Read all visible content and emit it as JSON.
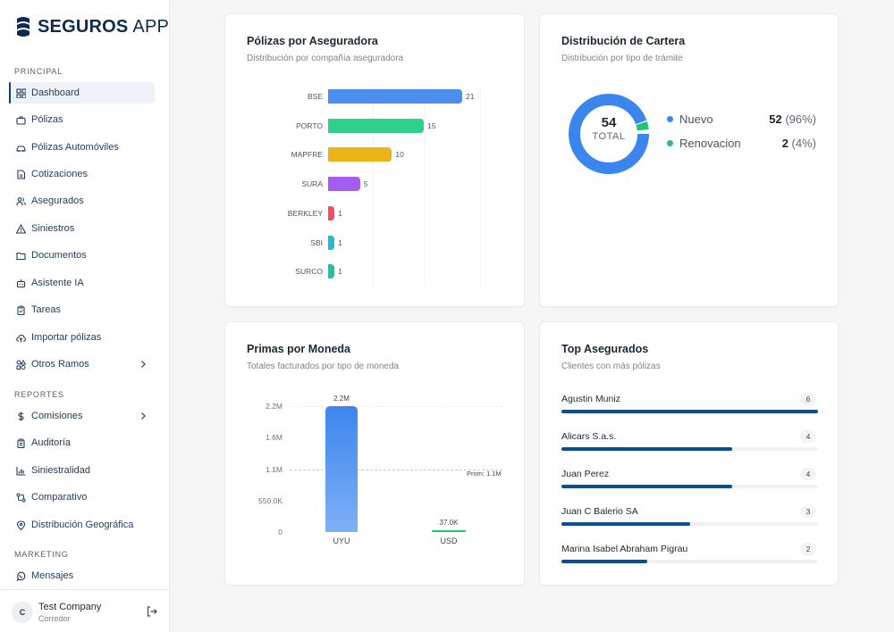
{
  "app": {
    "brand_bold": "SEGUROS",
    "brand_light": "APP",
    "colors": {
      "primary": "#0d3f7a",
      "accent_blue": "#3b82f6",
      "green": "#22c55e"
    }
  },
  "sidebar": {
    "sections": [
      {
        "label": "PRINCIPAL"
      },
      {
        "label": "REPORTES"
      },
      {
        "label": "MARKETING"
      }
    ],
    "items": [
      {
        "label": "Dashboard",
        "icon": "grid-icon",
        "active": true
      },
      {
        "label": "Pólizas",
        "icon": "briefcase-icon"
      },
      {
        "label": "Pólizas Automóviles",
        "icon": "car-icon"
      },
      {
        "label": "Cotizaciones",
        "icon": "document-icon"
      },
      {
        "label": "Asegurados",
        "icon": "users-icon"
      },
      {
        "label": "Siniestros",
        "icon": "alert-triangle-icon"
      },
      {
        "label": "Documentos",
        "icon": "folder-icon"
      },
      {
        "label": "Asistente IA",
        "icon": "robot-icon"
      },
      {
        "label": "Tareas",
        "icon": "clipboard-icon"
      },
      {
        "label": "Importar pólizas",
        "icon": "cloud-upload-icon"
      },
      {
        "label": "Otros Ramos",
        "icon": "shapes-icon",
        "chevron": true
      },
      {
        "label": "Comisiones",
        "icon": "dollar-icon",
        "chevron": true
      },
      {
        "label": "Auditoría",
        "icon": "clipboard-list-icon"
      },
      {
        "label": "Siniestralidad",
        "icon": "bar-chart-icon"
      },
      {
        "label": "Comparativo",
        "icon": "compare-icon"
      },
      {
        "label": "Distribución Geográfica",
        "icon": "map-pin-icon"
      },
      {
        "label": "Mensajes",
        "icon": "whatsapp-icon"
      }
    ],
    "footer": {
      "avatar": "C",
      "company": "Test Company",
      "role": "Corredor",
      "logout_icon": "logout-icon"
    }
  },
  "cards": {
    "polizas": {
      "title": "Pólizas por Aseguradora",
      "subtitle": "Distribución por compañía aseguradora"
    },
    "cartera": {
      "title": "Distribución de Cartera",
      "subtitle": "Distribución por tipo de trámite",
      "total_value": "54",
      "total_label": "TOTAL",
      "legend": [
        {
          "name": "Nuevo",
          "value": "52",
          "pct": "(96%)",
          "color": "#3b86ee"
        },
        {
          "name": "Renovacion",
          "value": "2",
          "pct": "(4%)",
          "color": "#21c27a"
        }
      ]
    },
    "primas": {
      "title": "Primas por Moneda",
      "subtitle": "Totales facturados por tipo de moneda",
      "avg_label": "Prom: 1.1M"
    },
    "top": {
      "title": "Top Asegurados",
      "subtitle": "Clientes con más pólizas",
      "max": 6,
      "rows": [
        {
          "name": "Agustin Muniz",
          "count": "6",
          "value": 6
        },
        {
          "name": "Alicars S.a.s.",
          "count": "4",
          "value": 4
        },
        {
          "name": "Juan Perez",
          "count": "4",
          "value": 4
        },
        {
          "name": "Juan C Balerio SA",
          "count": "3",
          "value": 3
        },
        {
          "name": "Marina Isabel Abraham Pigrau",
          "count": "2",
          "value": 2
        }
      ]
    }
  },
  "chart_data": [
    {
      "type": "bar",
      "orientation": "horizontal",
      "categories": [
        "BSE",
        "PORTO",
        "MAPFRE",
        "SURA",
        "BERKLEY",
        "SBI",
        "SURCO"
      ],
      "values": [
        21,
        15,
        10,
        5,
        1,
        1,
        1
      ],
      "colors": [
        "#4a8ff0",
        "#2fcf8e",
        "#ecb417",
        "#a55cf0",
        "#ef4f5a",
        "#22b9d6",
        "#22c29e"
      ],
      "xlim": [
        0,
        24
      ]
    },
    {
      "type": "pie",
      "categories": [
        "Nuevo",
        "Renovacion"
      ],
      "values": [
        52,
        2
      ],
      "colors": [
        "#3b86ee",
        "#21c27a"
      ]
    },
    {
      "type": "bar",
      "categories": [
        "UYU",
        "USD"
      ],
      "values": [
        2200000,
        37000
      ],
      "data_labels": [
        "2.2M",
        "37.0K"
      ],
      "colors": [
        "#3b86ee",
        "#22c55e"
      ],
      "ylim": [
        0,
        2200000
      ],
      "yticks": [
        "0",
        "550.0K",
        "1.1M",
        "1.6M",
        "2.2M"
      ],
      "average": 1100000
    }
  ]
}
